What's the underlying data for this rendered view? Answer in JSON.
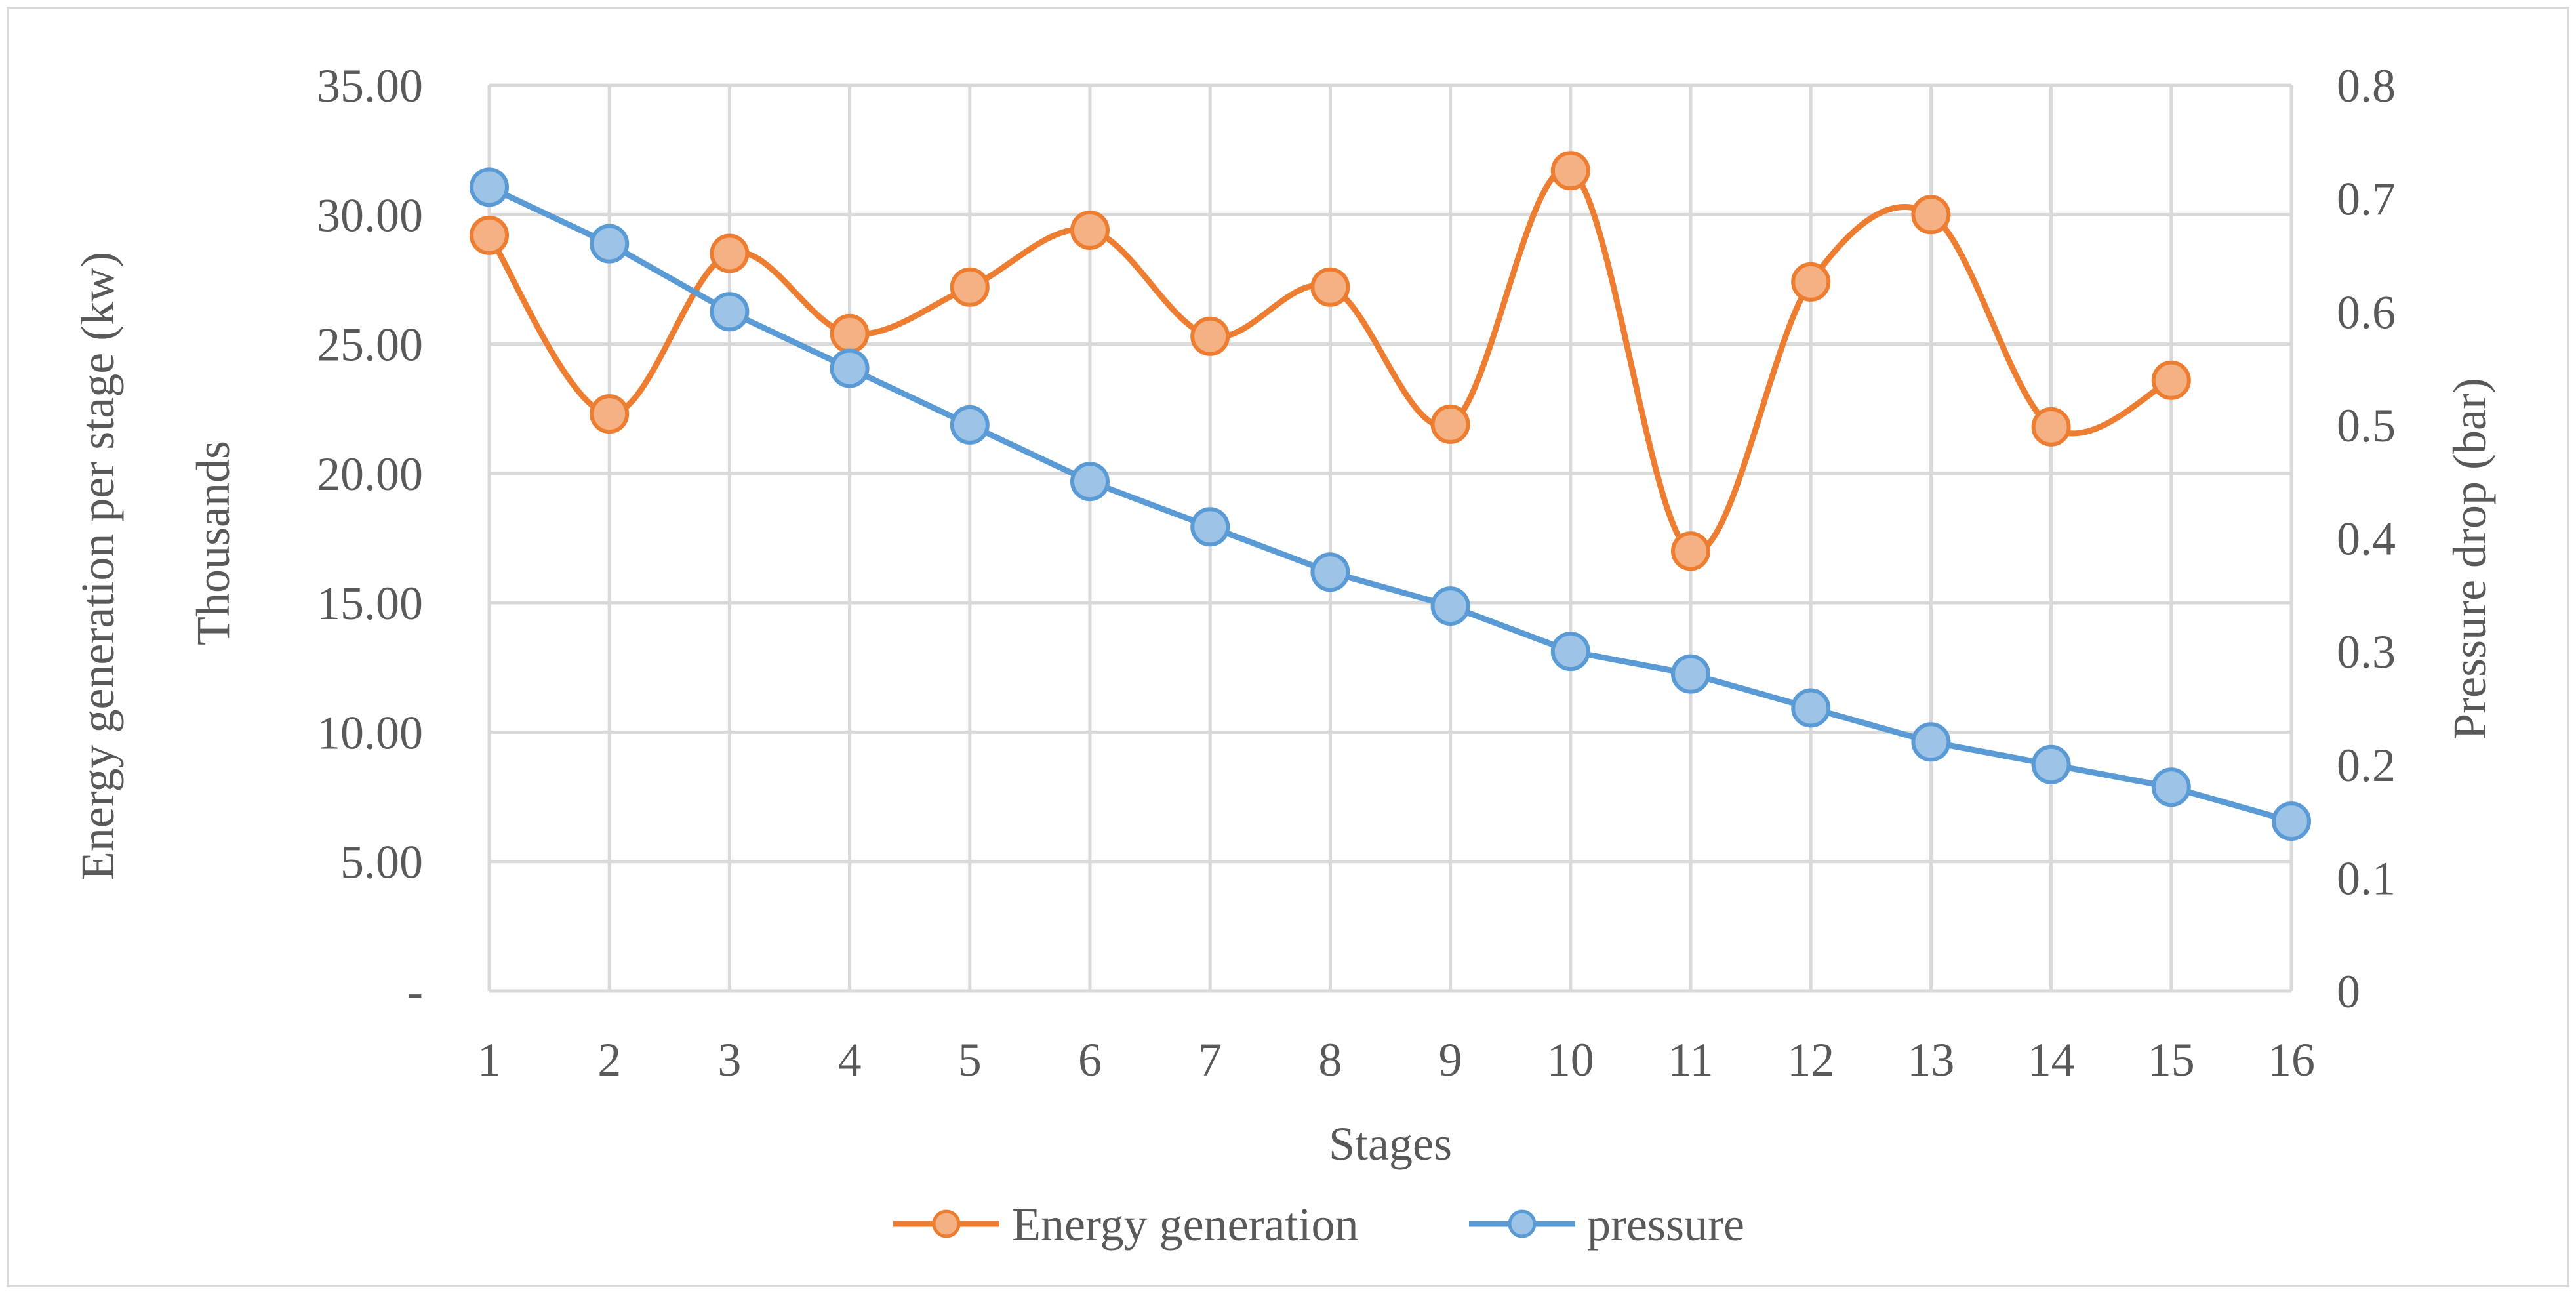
{
  "chart_data": {
    "type": "line",
    "title": "",
    "xlabel": "Stages",
    "x": [
      1,
      2,
      3,
      4,
      5,
      6,
      7,
      8,
      9,
      10,
      11,
      12,
      13,
      14,
      15,
      16
    ],
    "y_axis_left": {
      "label": "Energy generation per stage (kw)",
      "units_label": "Thousands",
      "range": [
        0,
        35
      ],
      "ticks": [
        "-",
        "5.00",
        "10.00",
        "15.00",
        "20.00",
        "25.00",
        "30.00",
        "35.00"
      ]
    },
    "y_axis_right": {
      "label": "Pressure drop (bar)",
      "range": [
        0,
        0.8
      ],
      "ticks": [
        "0",
        "0.1",
        "0.2",
        "0.3",
        "0.4",
        "0.5",
        "0.6",
        "0.7",
        "0.8"
      ]
    },
    "grid": true,
    "legend_position": "bottom",
    "series": [
      {
        "name": "Energy generation",
        "axis": "left",
        "smooth": true,
        "color": "#ED7D31",
        "marker_fill": "#F4B183",
        "x": [
          1,
          2,
          3,
          4,
          5,
          6,
          7,
          8,
          9,
          10,
          11,
          12,
          13,
          14,
          15
        ],
        "values": [
          29.2,
          22.3,
          28.5,
          25.4,
          27.2,
          29.4,
          25.3,
          27.2,
          21.9,
          31.7,
          17.0,
          27.4,
          30.0,
          21.8,
          23.6
        ]
      },
      {
        "name": "pressure",
        "axis": "right",
        "smooth": false,
        "color": "#5B9BD5",
        "marker_fill": "#9DC3E6",
        "x": [
          1,
          2,
          3,
          4,
          5,
          6,
          7,
          8,
          9,
          10,
          11,
          12,
          13,
          14,
          15,
          16
        ],
        "values": [
          0.71,
          0.66,
          0.6,
          0.55,
          0.5,
          0.45,
          0.41,
          0.37,
          0.34,
          0.3,
          0.28,
          0.25,
          0.22,
          0.2,
          0.18,
          0.15
        ]
      }
    ]
  }
}
